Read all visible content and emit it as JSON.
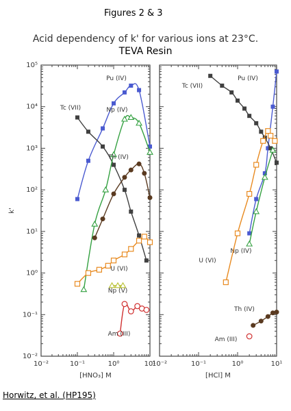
{
  "header": {
    "figure_label": "Figures 2 & 3",
    "title": "Acid dependency of k' for various ions at 23°C.",
    "subtitle": "TEVA Resin"
  },
  "citation": "Horwitz, et al. (HP195)",
  "chart_data": [
    {
      "type": "line",
      "xlabel": "[HNO₃] M",
      "ylabel": "k'",
      "x_scale": "log",
      "y_scale": "log",
      "xlim": [
        0.01,
        10
      ],
      "ylim": [
        0.01,
        100000
      ],
      "x_tick_labels": [
        "10⁻²",
        "10⁻¹",
        "10⁰",
        "10¹"
      ],
      "y_tick_labels": [
        "10⁻²",
        "10⁻¹",
        "10⁰",
        "10¹",
        "10²",
        "10³",
        "10⁴",
        "10⁵"
      ],
      "series": [
        {
          "name": "Pu (IV)",
          "color": "#4a5ad0",
          "marker": "square-filled",
          "x": [
            0.1,
            0.2,
            0.5,
            1.0,
            2.0,
            3.0,
            5.0,
            10.0
          ],
          "y": [
            60,
            500,
            3000,
            12000,
            22000,
            32000,
            25000,
            1100
          ]
        },
        {
          "name": "Tc (VII)",
          "color": "#404040",
          "marker": "square-filled",
          "x": [
            0.1,
            0.2,
            0.5,
            1.0,
            2.0,
            3.0,
            5.0,
            8.0
          ],
          "y": [
            5500,
            2500,
            1100,
            400,
            100,
            30,
            8,
            2
          ]
        },
        {
          "name": "Np (IV)",
          "color": "#33a040",
          "marker": "triangle-open",
          "x": [
            0.15,
            0.3,
            0.6,
            1.0,
            2.0,
            3.0,
            5.0,
            10.0
          ],
          "y": [
            0.4,
            15,
            100,
            700,
            5000,
            5500,
            4000,
            800
          ]
        },
        {
          "name": "Th (IV)",
          "color": "#5a3a20",
          "marker": "circle-filled",
          "x": [
            0.3,
            0.5,
            1.0,
            2.0,
            3.0,
            5.0,
            7.0,
            10.0
          ],
          "y": [
            7,
            20,
            80,
            200,
            300,
            420,
            250,
            65
          ]
        },
        {
          "name": "U (VI)",
          "color": "#e88a20",
          "marker": "square-open",
          "x": [
            0.1,
            0.2,
            0.4,
            0.7,
            1.0,
            2.0,
            3.0,
            5.0,
            7.0,
            10.0
          ],
          "y": [
            0.55,
            1.0,
            1.2,
            1.5,
            2.0,
            2.8,
            3.8,
            6.0,
            7.5,
            5.5
          ]
        },
        {
          "name": "Np (V)",
          "color": "#b8c030",
          "marker": "triangle-open",
          "x": [
            0.9,
            1.3,
            1.8
          ],
          "y": [
            0.5,
            0.5,
            0.5
          ]
        },
        {
          "name": "Am (III)",
          "color": "#d03030",
          "marker": "circle-open",
          "x": [
            1.5,
            2.0,
            3.0,
            4.5,
            6.0,
            8.0
          ],
          "y": [
            0.035,
            0.18,
            0.12,
            0.16,
            0.14,
            0.13
          ]
        }
      ]
    },
    {
      "type": "line",
      "xlabel": "[HCl] M",
      "ylabel": "k'",
      "x_scale": "log",
      "y_scale": "log",
      "xlim": [
        0.01,
        10
      ],
      "ylim": [
        0.01,
        100000
      ],
      "x_tick_labels": [
        "10⁻²",
        "10⁻¹",
        "10⁰",
        "10¹"
      ],
      "series": [
        {
          "name": "Pu (IV)",
          "color": "#4a5ad0",
          "marker": "square-filled",
          "x": [
            2.0,
            3.0,
            5.0,
            6.0,
            8.0,
            10.0
          ],
          "y": [
            9,
            60,
            250,
            1000,
            10000,
            70000
          ]
        },
        {
          "name": "Tc (VII)",
          "color": "#404040",
          "marker": "square-filled",
          "x": [
            0.2,
            0.4,
            0.7,
            1.0,
            1.5,
            2.0,
            3.0,
            4.0,
            5.0,
            7.0,
            10.0
          ],
          "y": [
            55000,
            32000,
            22000,
            14000,
            9000,
            6000,
            4000,
            2500,
            1800,
            1000,
            450
          ]
        },
        {
          "name": "Np (IV)",
          "color": "#33a040",
          "marker": "triangle-open",
          "x": [
            2.0,
            3.0,
            5.0,
            8.0
          ],
          "y": [
            5,
            30,
            200,
            900
          ]
        },
        {
          "name": "U (VI)",
          "color": "#e88a20",
          "marker": "square-open",
          "x": [
            0.5,
            1.0,
            2.0,
            3.0,
            4.5,
            6.0,
            7.0,
            9.0
          ],
          "y": [
            0.6,
            9,
            80,
            400,
            1500,
            2600,
            2000,
            1500
          ]
        },
        {
          "name": "Th (IV)",
          "color": "#5a3a20",
          "marker": "circle-filled",
          "x": [
            2.5,
            4.0,
            6.0,
            8.0,
            10.0
          ],
          "y": [
            0.055,
            0.07,
            0.09,
            0.11,
            0.115
          ]
        },
        {
          "name": "Am (III)",
          "color": "#d03030",
          "marker": "circle-open",
          "x": [
            2.0
          ],
          "y": [
            0.03
          ]
        }
      ]
    }
  ]
}
